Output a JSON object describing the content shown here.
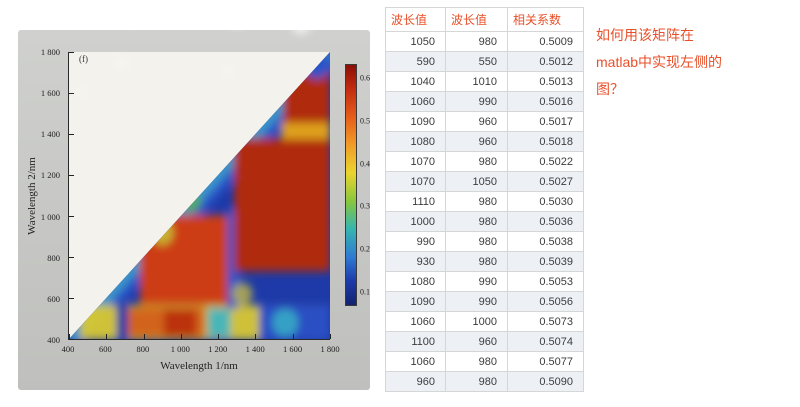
{
  "colors": {
    "accent_text": "#e8502a"
  },
  "question": {
    "lines": [
      "如何用该矩阵在",
      "matlab中实现左侧的",
      "图？"
    ]
  },
  "table": {
    "headers": [
      "波长值",
      "波长值",
      "相关系数"
    ],
    "rows": [
      [
        "1050",
        "980",
        "0.5009"
      ],
      [
        "590",
        "550",
        "0.5012"
      ],
      [
        "1040",
        "1010",
        "0.5013"
      ],
      [
        "1060",
        "990",
        "0.5016"
      ],
      [
        "1090",
        "960",
        "0.5017"
      ],
      [
        "1080",
        "960",
        "0.5018"
      ],
      [
        "1070",
        "980",
        "0.5022"
      ],
      [
        "1070",
        "1050",
        "0.5027"
      ],
      [
        "1110",
        "980",
        "0.5030"
      ],
      [
        "1000",
        "980",
        "0.5036"
      ],
      [
        "990",
        "980",
        "0.5038"
      ],
      [
        "930",
        "980",
        "0.5039"
      ],
      [
        "1080",
        "990",
        "0.5053"
      ],
      [
        "1090",
        "990",
        "0.5056"
      ],
      [
        "1060",
        "1000",
        "0.5073"
      ],
      [
        "1100",
        "960",
        "0.5074"
      ],
      [
        "1060",
        "980",
        "0.5077"
      ],
      [
        "960",
        "980",
        "0.5090"
      ]
    ]
  },
  "chart_data": {
    "type": "heatmap",
    "panel_label": "(f)",
    "xlabel": "Wavelength 1/nm",
    "ylabel": "Wavelength 2/nm",
    "xlim": [
      400,
      1800
    ],
    "ylim": [
      400,
      1800
    ],
    "xtick_labels": [
      "400",
      "600",
      "800",
      "1 000",
      "1 200",
      "1 400",
      "1 600",
      "1 800"
    ],
    "ytick_labels": [
      "1 800",
      "1 600",
      "1 400",
      "1 200",
      "1 000",
      "800",
      "600",
      "400"
    ],
    "colorbar_tick_labels": [
      "0.6",
      "0.5",
      "0.4",
      "0.3",
      "0.2",
      "0.1"
    ],
    "colorbar_range": [
      0.1,
      0.6
    ],
    "domain_shape": "lower triangle (Wavelength 1 >= Wavelength 2)",
    "description": "Photographed 2D correlation heatmap: large dark-red high-correlation blocks spanning roughly 800-1800 nm (W1) vs 600-1400 nm (W2), a yellow/orange band near W2 400-600 nm, a red patch near W1 1550-1800 / W2 1450-1700 nm, and blue low values along the diagonal edge",
    "points": {
      "columns": [
        "wavelength_1_nm",
        "wavelength_2_nm",
        "correlation_coefficient"
      ],
      "rows": [
        [
          1050,
          980,
          0.5009
        ],
        [
          590,
          550,
          0.5012
        ],
        [
          1040,
          1010,
          0.5013
        ],
        [
          1060,
          990,
          0.5016
        ],
        [
          1090,
          960,
          0.5017
        ],
        [
          1080,
          960,
          0.5018
        ],
        [
          1070,
          980,
          0.5022
        ],
        [
          1070,
          1050,
          0.5027
        ],
        [
          1110,
          980,
          0.503
        ],
        [
          1000,
          980,
          0.5036
        ],
        [
          990,
          980,
          0.5038
        ],
        [
          930,
          980,
          0.5039
        ],
        [
          1080,
          990,
          0.5053
        ],
        [
          1090,
          990,
          0.5056
        ],
        [
          1060,
          1000,
          0.5073
        ],
        [
          1100,
          960,
          0.5074
        ],
        [
          1060,
          980,
          0.5077
        ],
        [
          960,
          980,
          0.509
        ]
      ]
    }
  }
}
